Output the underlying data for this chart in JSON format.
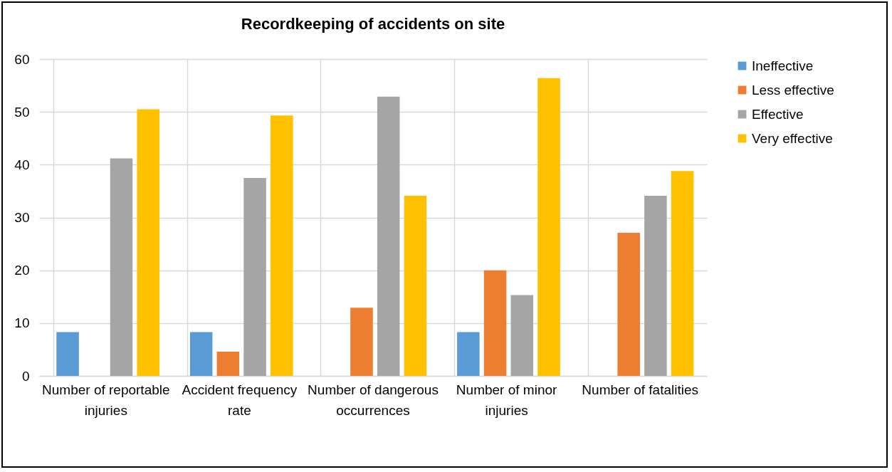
{
  "chart_data": {
    "type": "bar",
    "title": "Recordkeeping of accidents on site",
    "categories": [
      "Number of reportable injuries",
      "Accident frequency rate",
      "Number of dangerous occurrences",
      "Number of minor injuries",
      "Number of fatalities"
    ],
    "series": [
      {
        "name": "Ineffective",
        "color": "#5b9bd5",
        "values": [
          8.3,
          8.3,
          0,
          8.3,
          0
        ]
      },
      {
        "name": "Less effective",
        "color": "#ed7d31",
        "values": [
          0,
          4.6,
          12.9,
          20.0,
          27.1
        ]
      },
      {
        "name": "Effective",
        "color": "#a5a5a5",
        "values": [
          41.2,
          37.5,
          52.9,
          15.3,
          34.1
        ]
      },
      {
        "name": "Very effective",
        "color": "#ffc000",
        "values": [
          50.5,
          49.3,
          34.1,
          56.4,
          38.8
        ]
      }
    ],
    "ylim": [
      0,
      60
    ],
    "yticks": [
      0,
      10,
      20,
      30,
      40,
      50,
      60
    ],
    "grid": true,
    "legend": "right"
  }
}
